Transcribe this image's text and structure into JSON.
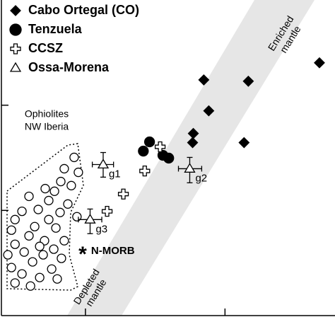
{
  "chart_data": {
    "type": "scatter",
    "xscale": "log",
    "yscale": "log",
    "xlim": [
      0.25,
      60
    ],
    "ylim": [
      0.01,
      10
    ],
    "xticks": [
      1,
      10
    ],
    "yticks": [
      0.1,
      1
    ],
    "series": [
      {
        "name": "Cabo Ortegal (CO)",
        "marker": "diamond",
        "color": "#000000",
        "x": [
          7.05,
          14.7,
          47.5,
          7.65,
          5.93,
          5.86,
          13.7
        ],
        "y": [
          1.74,
          1.69,
          2.53,
          0.884,
          0.539,
          0.441,
          0.441
        ]
      },
      {
        "name": "Tenzuela",
        "marker": "circle",
        "color": "#000000",
        "x": [
          2.88,
          2.6,
          3.59,
          3.95
        ],
        "y": [
          0.448,
          0.366,
          0.334,
          0.314
        ]
      },
      {
        "name": "CCSZ",
        "marker": "cross",
        "color": "#ffffff",
        "x": [
          3.43,
          2.66,
          1.87,
          1.43
        ],
        "y": [
          0.402,
          0.237,
          0.143,
          0.098
        ]
      },
      {
        "name": "Ossa-Morena",
        "marker": "triangle",
        "color": "#ffffff",
        "x": [
          1.34,
          5.59,
          1.08
        ],
        "y": [
          0.273,
          0.249,
          0.0818
        ],
        "x_low": [
          1.12,
          4.64,
          0.89
        ],
        "x_high": [
          1.59,
          6.81,
          1.31
        ],
        "y_low": [
          0.207,
          0.183,
          0.0601
        ],
        "y_high": [
          0.355,
          0.319,
          0.103
        ],
        "labels": [
          "g1",
          "g2",
          "g3"
        ]
      }
    ],
    "ophiolites": {
      "label": [
        "Ophiolites",
        "NW Iberia"
      ],
      "marker": "circle",
      "color": "#ffffff",
      "x": [
        0.83,
        0.705,
        0.89,
        0.666,
        0.515,
        0.792,
        0.6,
        0.394,
        0.546,
        0.748,
        0.459,
        0.351,
        0.658,
        0.546,
        0.869,
        0.313,
        0.433,
        0.295,
        0.614,
        0.394,
        0.313,
        0.509,
        0.705,
        0.47,
        0.593,
        0.364,
        0.278,
        0.498,
        0.673,
        0.418,
        0.295,
        0.573,
        0.351,
        0.47,
        0.628,
        0.404,
        0.313
      ],
      "y": [
        0.319,
        0.249,
        0.23,
        0.188,
        0.161,
        0.172,
        0.152,
        0.136,
        0.124,
        0.115,
        0.102,
        0.098,
        0.0955,
        0.0818,
        0.0871,
        0.0818,
        0.0701,
        0.0649,
        0.068,
        0.0573,
        0.0476,
        0.0515,
        0.0515,
        0.0455,
        0.0428,
        0.0402,
        0.0378,
        0.0378,
        0.035,
        0.0324,
        0.0286,
        0.0277,
        0.0249,
        0.023,
        0.0223,
        0.0191,
        0.0204
      ]
    },
    "nmorb": {
      "label": "N-MORB",
      "x": 0.955,
      "y": 0.041
    },
    "enriched_label": [
      "Enriched",
      "mantle"
    ],
    "depleted_label": [
      "Depleted",
      "mantle"
    ]
  }
}
